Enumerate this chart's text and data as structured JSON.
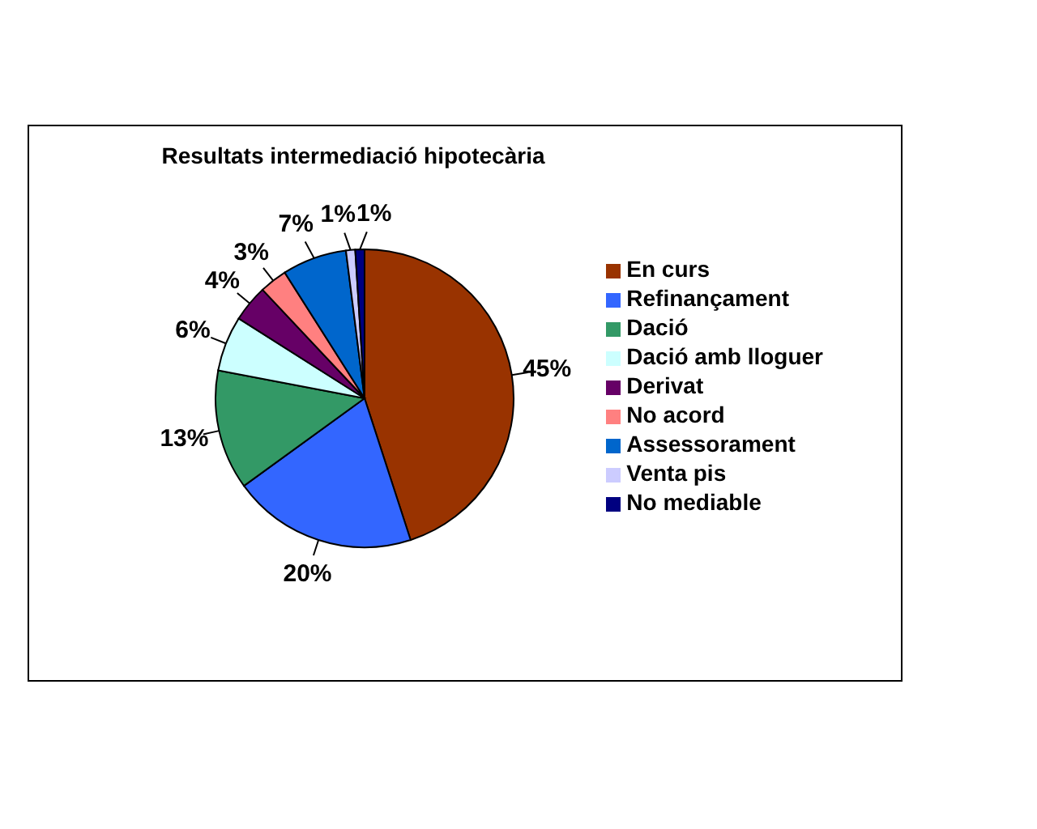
{
  "chart_data": {
    "type": "pie",
    "title": "Resultats intermediació hipotecària",
    "categories": [
      "En curs",
      "Refinançament",
      "Dació",
      "Dació amb lloguer",
      "Derivat",
      "No acord",
      "Assessorament",
      "Venta pis",
      "No mediable"
    ],
    "values": [
      45,
      20,
      13,
      6,
      4,
      3,
      7,
      1,
      1
    ],
    "value_labels": [
      "45%",
      "20%",
      "13%",
      "6%",
      "4%",
      "3%",
      "7%",
      "1%",
      "1%"
    ],
    "colors": [
      "#993300",
      "#3366ff",
      "#339966",
      "#ccffff",
      "#660066",
      "#ff8080",
      "#0066cc",
      "#ccccff",
      "#000080"
    ],
    "legend": "right"
  }
}
